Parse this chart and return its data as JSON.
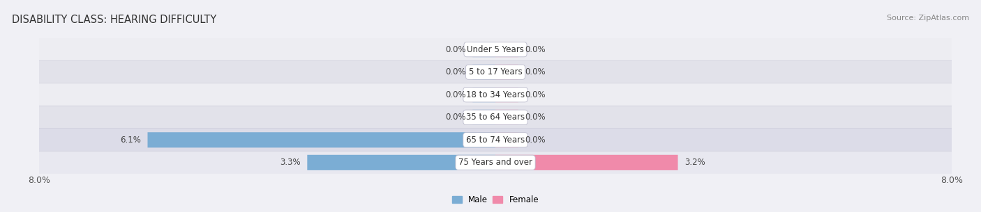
{
  "title": "DISABILITY CLASS: HEARING DIFFICULTY",
  "source": "Source: ZipAtlas.com",
  "categories": [
    "Under 5 Years",
    "5 to 17 Years",
    "18 to 34 Years",
    "35 to 64 Years",
    "65 to 74 Years",
    "75 Years and over"
  ],
  "male_values": [
    0.0,
    0.0,
    0.0,
    0.0,
    6.1,
    3.3
  ],
  "female_values": [
    0.0,
    0.0,
    0.0,
    0.0,
    0.0,
    3.2
  ],
  "male_color": "#7badd4",
  "female_color": "#f08aaa",
  "male_stub_color": "#a8c8e8",
  "female_stub_color": "#f4b8cc",
  "row_colors": [
    "#ededf2",
    "#e2e2ea",
    "#ededf2",
    "#e2e2ea",
    "#dcdce8",
    "#e8e8f0"
  ],
  "axis_max": 8.0,
  "stub_size": 0.4,
  "title_fontsize": 10.5,
  "source_fontsize": 8,
  "tick_fontsize": 9,
  "label_fontsize": 8.5,
  "value_fontsize": 8.5
}
